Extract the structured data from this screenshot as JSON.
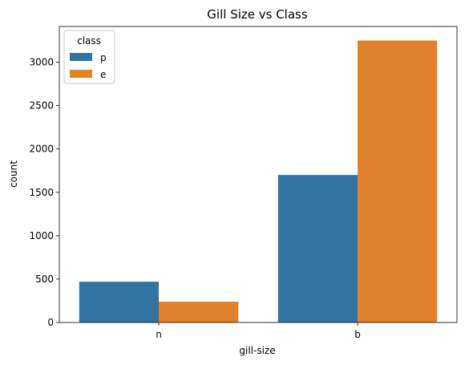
{
  "chart_data": {
    "type": "bar",
    "title": "Gill Size vs Class",
    "xlabel": "gill-size",
    "ylabel": "count",
    "categories": [
      "n",
      "b"
    ],
    "series": [
      {
        "name": "p",
        "values": [
          470,
          1700
        ],
        "color": "#3274a1"
      },
      {
        "name": "e",
        "values": [
          240,
          3250
        ],
        "color": "#e1812c"
      }
    ],
    "ylim": [
      0,
      3412
    ],
    "yticks": [
      0,
      500,
      1000,
      1500,
      2000,
      2500,
      3000
    ],
    "legend": {
      "title": "class",
      "placement": "top-left"
    },
    "grid": false
  }
}
